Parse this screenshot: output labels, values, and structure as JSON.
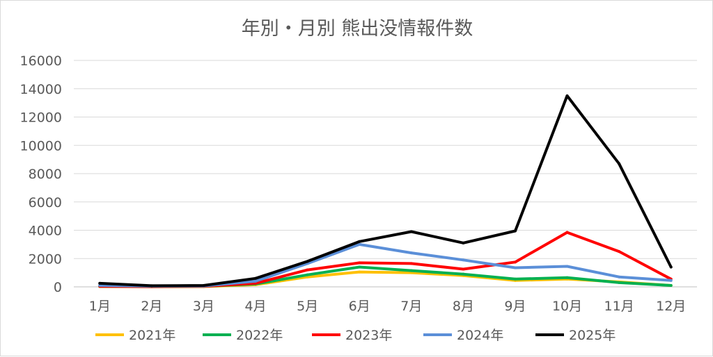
{
  "chart_data": {
    "type": "line",
    "title": "年別・月別 熊出没情報件数",
    "xlabel": "",
    "ylabel": "",
    "categories": [
      "1月",
      "2月",
      "3月",
      "4月",
      "5月",
      "6月",
      "7月",
      "8月",
      "9月",
      "10月",
      "11月",
      "12月"
    ],
    "ylim": [
      0,
      16000
    ],
    "yticks": [
      0,
      2000,
      4000,
      6000,
      8000,
      10000,
      12000,
      14000,
      16000
    ],
    "grid": true,
    "legend_position": "bottom",
    "series": [
      {
        "name": "2021年",
        "color": "#ffc000",
        "values": [
          20,
          10,
          20,
          150,
          700,
          1050,
          1000,
          800,
          450,
          550,
          350,
          100
        ]
      },
      {
        "name": "2022年",
        "color": "#00b050",
        "values": [
          30,
          20,
          40,
          200,
          850,
          1400,
          1150,
          900,
          550,
          650,
          300,
          100
        ]
      },
      {
        "name": "2023年",
        "color": "#ff0000",
        "values": [
          40,
          20,
          40,
          250,
          1200,
          1700,
          1650,
          1250,
          1750,
          3850,
          2500,
          550
        ]
      },
      {
        "name": "2024年",
        "color": "#5b8fd8",
        "values": [
          100,
          50,
          60,
          400,
          1650,
          3000,
          2400,
          1900,
          1350,
          1450,
          700,
          450
        ]
      },
      {
        "name": "2025年",
        "color": "#000000",
        "values": [
          250,
          80,
          100,
          600,
          1800,
          3200,
          3900,
          3100,
          3950,
          13500,
          8700,
          1400
        ]
      }
    ]
  }
}
